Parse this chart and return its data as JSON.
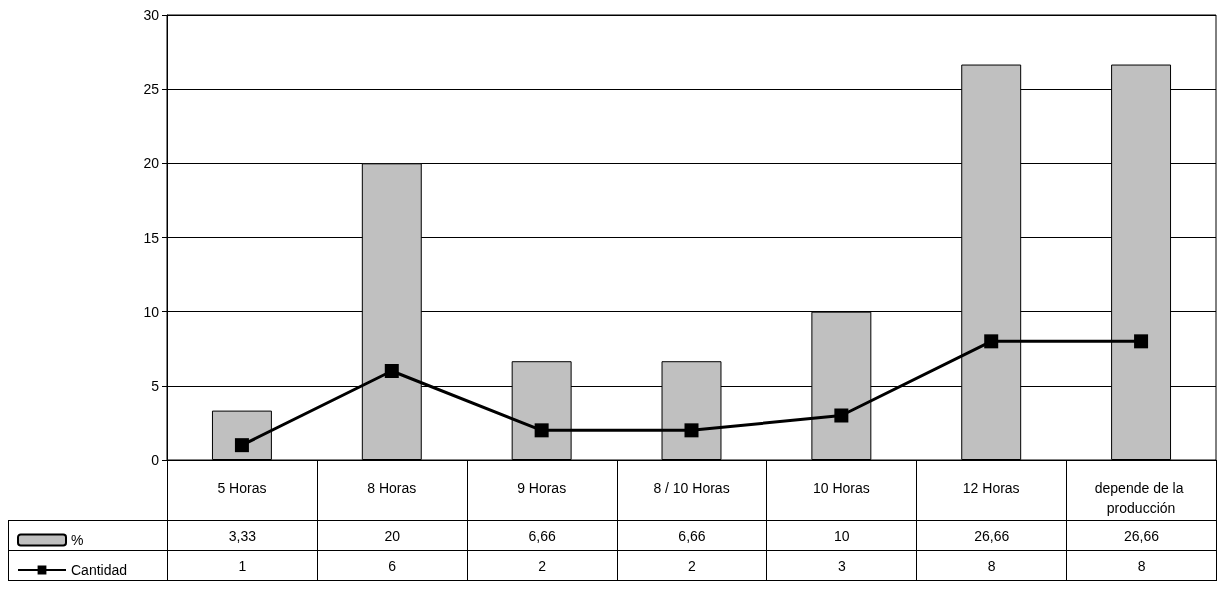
{
  "chart_data": {
    "type": "bar",
    "categories": [
      "5 Horas",
      "8 Horas",
      "9 Horas",
      "8 / 10 Horas",
      "10 Horas",
      "12 Horas",
      "depende de la producción"
    ],
    "series": [
      {
        "name": "%",
        "color": "#c0c0c0",
        "values": [
          3.33,
          20,
          6.66,
          6.66,
          10,
          26.66,
          26.66
        ],
        "value_labels": [
          "3,33",
          "20",
          "6,66",
          "6,66",
          "10",
          "26,66",
          "26,66"
        ]
      },
      {
        "name": "Cantidad",
        "type": "line",
        "color": "#000000",
        "marker": "square",
        "values": [
          1,
          6,
          2,
          2,
          3,
          8,
          8
        ],
        "value_labels": [
          "1",
          "6",
          "2",
          "2",
          "3",
          "8",
          "8"
        ]
      }
    ],
    "ylim": [
      0,
      30
    ],
    "yticks": [
      0,
      5,
      10,
      15,
      20,
      25,
      30
    ],
    "grid": "y",
    "legend": "bottom left"
  }
}
